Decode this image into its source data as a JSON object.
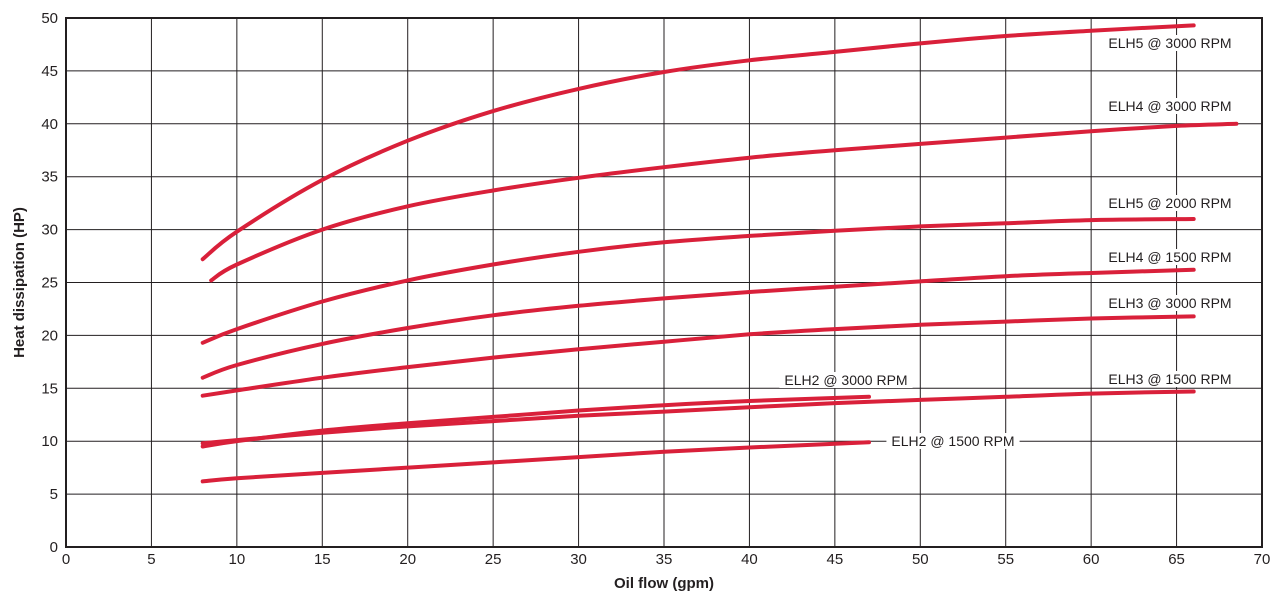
{
  "chart_data": {
    "type": "line",
    "xlabel": "Oil flow (gpm)",
    "ylabel": "Heat dissipation (HP)",
    "xlim": [
      0,
      70
    ],
    "ylim": [
      0,
      50
    ],
    "x_ticks": [
      0,
      5,
      10,
      15,
      20,
      25,
      30,
      35,
      40,
      45,
      50,
      55,
      60,
      65,
      70
    ],
    "y_ticks": [
      0,
      5,
      10,
      15,
      20,
      25,
      30,
      35,
      40,
      45,
      50
    ],
    "grid": true,
    "line_color": "#d9203a",
    "series": [
      {
        "name": "ELH5 @ 3000 RPM",
        "x": [
          8,
          10,
          15,
          20,
          25,
          30,
          35,
          40,
          45,
          50,
          55,
          60,
          66
        ],
        "y": [
          27.2,
          29.8,
          34.7,
          38.4,
          41.2,
          43.3,
          44.9,
          46.0,
          46.8,
          47.6,
          48.3,
          48.8,
          49.3
        ]
      },
      {
        "name": "ELH4 @ 3000 RPM",
        "x": [
          8.5,
          10,
          15,
          20,
          25,
          30,
          35,
          40,
          45,
          50,
          55,
          60,
          65,
          68.5
        ],
        "y": [
          25.2,
          26.7,
          30.0,
          32.2,
          33.7,
          34.9,
          35.9,
          36.8,
          37.5,
          38.1,
          38.7,
          39.3,
          39.8,
          40.0
        ]
      },
      {
        "name": "ELH5 @ 2000 RPM",
        "x": [
          8,
          10,
          15,
          20,
          25,
          30,
          35,
          40,
          45,
          50,
          55,
          60,
          66
        ],
        "y": [
          19.3,
          20.6,
          23.2,
          25.2,
          26.7,
          27.9,
          28.8,
          29.4,
          29.9,
          30.3,
          30.6,
          30.9,
          31.0
        ]
      },
      {
        "name": "ELH4 @ 1500 RPM",
        "x": [
          8,
          10,
          15,
          20,
          25,
          30,
          35,
          40,
          45,
          50,
          55,
          60,
          66
        ],
        "y": [
          16.0,
          17.2,
          19.2,
          20.7,
          21.9,
          22.8,
          23.5,
          24.1,
          24.6,
          25.1,
          25.6,
          25.9,
          26.2
        ]
      },
      {
        "name": "ELH3 @ 3000 RPM",
        "x": [
          8,
          10,
          15,
          20,
          25,
          30,
          35,
          40,
          45,
          50,
          55,
          60,
          66
        ],
        "y": [
          14.3,
          14.8,
          16.0,
          17.0,
          17.9,
          18.7,
          19.4,
          20.1,
          20.6,
          21.0,
          21.3,
          21.6,
          21.8
        ]
      },
      {
        "name": "ELH2 @ 3000 RPM",
        "x": [
          8,
          10,
          15,
          20,
          25,
          30,
          35,
          40,
          47
        ],
        "y": [
          9.5,
          10.0,
          11.0,
          11.7,
          12.3,
          12.9,
          13.4,
          13.8,
          14.2
        ]
      },
      {
        "name": "ELH3 @ 1500 RPM",
        "x": [
          8,
          10,
          15,
          20,
          25,
          30,
          35,
          40,
          45,
          50,
          55,
          60,
          66
        ],
        "y": [
          9.8,
          10.1,
          10.8,
          11.4,
          11.9,
          12.4,
          12.8,
          13.2,
          13.6,
          13.9,
          14.2,
          14.5,
          14.7
        ]
      },
      {
        "name": "ELH2 @ 1500 RPM",
        "x": [
          8,
          10,
          15,
          20,
          25,
          30,
          35,
          40,
          47
        ],
        "y": [
          6.2,
          6.5,
          7.0,
          7.5,
          8.0,
          8.5,
          9.0,
          9.4,
          9.9
        ]
      }
    ]
  }
}
